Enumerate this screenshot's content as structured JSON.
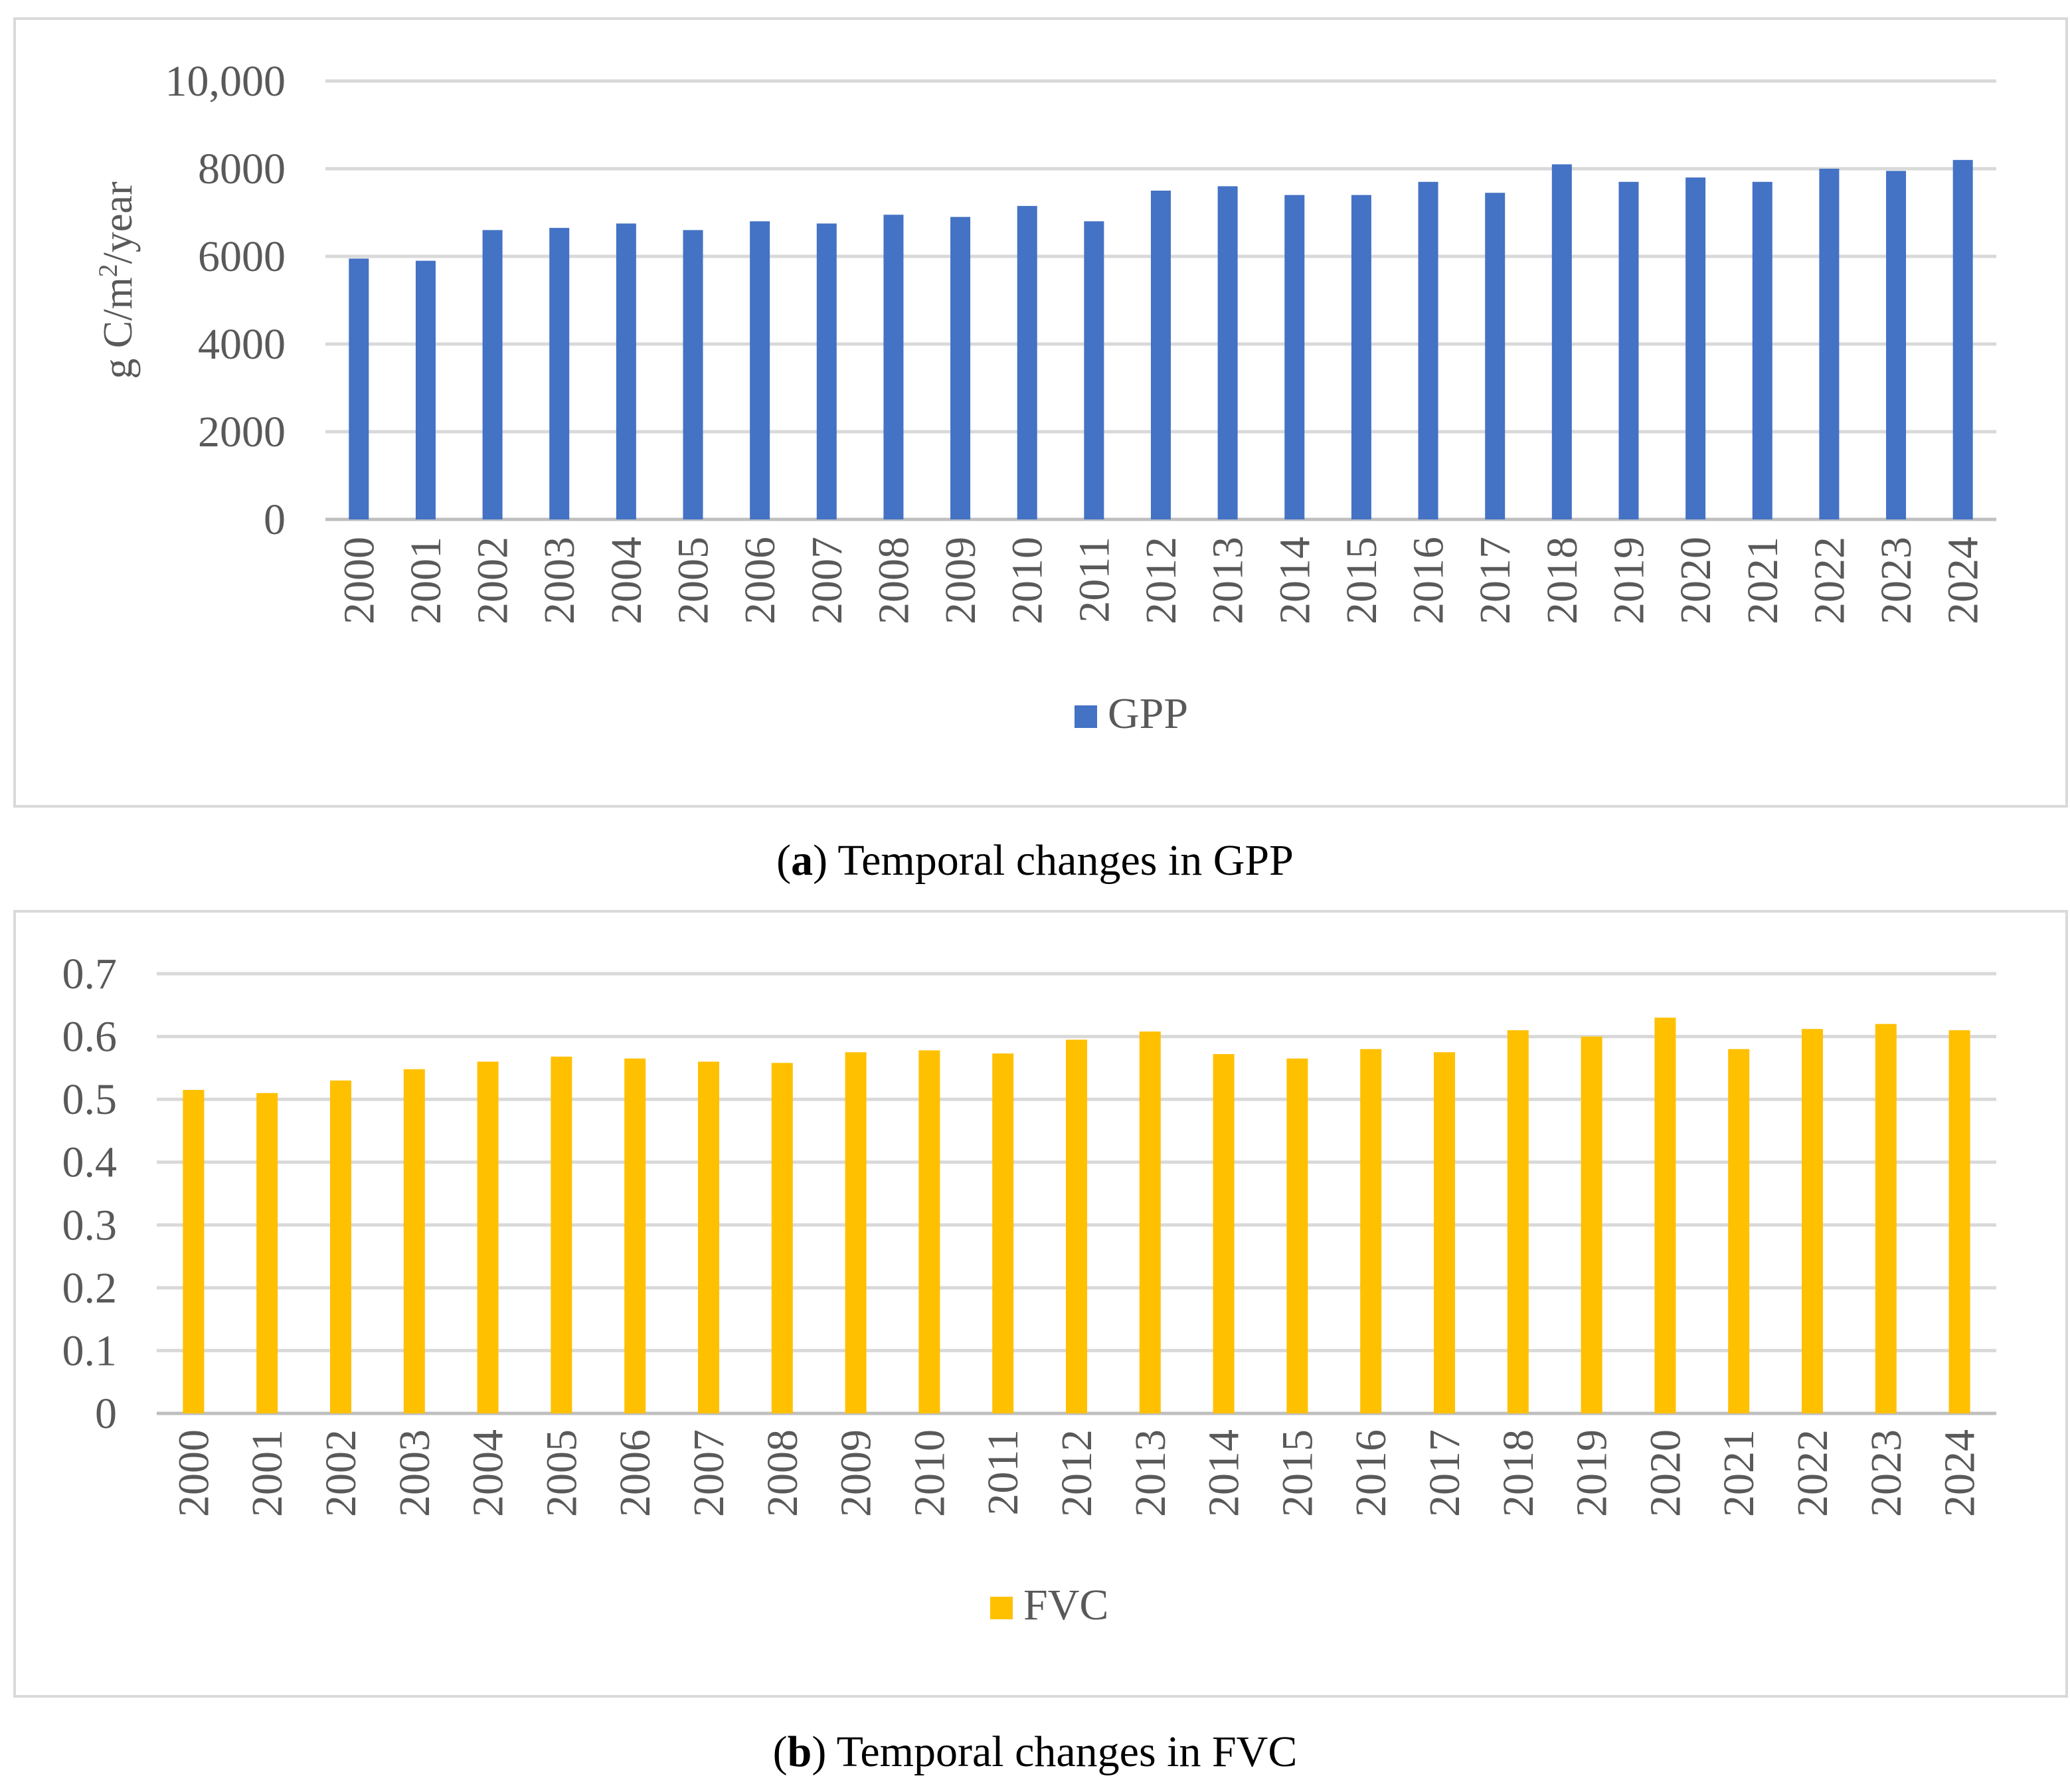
{
  "charts": [
    {
      "caption_label": "a",
      "caption_text": "Temporal changes in GPP",
      "legend": "GPP",
      "color": "#4472C4"
    },
    {
      "caption_label": "b",
      "caption_text": "Temporal changes in FVC",
      "legend": "FVC",
      "color": "#FFC000"
    }
  ],
  "chart_data": [
    {
      "type": "bar",
      "title": "Temporal changes in GPP",
      "ylabel_main": "g C/m",
      "ylabel_sup": "2",
      "ylabel_tail": "/year",
      "xlabel": "",
      "ylim": [
        0,
        10000
      ],
      "yticks": [
        0,
        2000,
        4000,
        6000,
        8000,
        10000
      ],
      "ytick_labels": [
        "0",
        "2000",
        "4000",
        "6000",
        "8000",
        "10,000"
      ],
      "categories": [
        "2000",
        "2001",
        "2002",
        "2003",
        "2004",
        "2005",
        "2006",
        "2007",
        "2008",
        "2009",
        "2010",
        "2011",
        "2012",
        "2013",
        "2014",
        "2015",
        "2016",
        "2017",
        "2018",
        "2019",
        "2020",
        "2021",
        "2022",
        "2023",
        "2024"
      ],
      "series": [
        {
          "name": "GPP",
          "color": "#4472C4",
          "values": [
            5950,
            5900,
            6600,
            6650,
            6750,
            6600,
            6800,
            6750,
            6950,
            6900,
            7150,
            6800,
            7500,
            7600,
            7400,
            7400,
            7700,
            7450,
            8100,
            7700,
            7800,
            7700,
            8000,
            7950,
            8200
          ]
        }
      ]
    },
    {
      "type": "bar",
      "title": "Temporal changes in FVC",
      "xlabel": "",
      "ylabel": "",
      "ylim": [
        0,
        0.7
      ],
      "yticks": [
        0,
        0.1,
        0.2,
        0.3,
        0.4,
        0.5,
        0.6,
        0.7
      ],
      "ytick_labels": [
        "0",
        "0.1",
        "0.2",
        "0.3",
        "0.4",
        "0.5",
        "0.6",
        "0.7"
      ],
      "categories": [
        "2000",
        "2001",
        "2002",
        "2003",
        "2004",
        "2005",
        "2006",
        "2007",
        "2008",
        "2009",
        "2010",
        "2011",
        "2012",
        "2013",
        "2014",
        "2015",
        "2016",
        "2017",
        "2018",
        "2019",
        "2020",
        "2021",
        "2022",
        "2023",
        "2024"
      ],
      "series": [
        {
          "name": "FVC",
          "color": "#FFC000",
          "values": [
            0.515,
            0.51,
            0.53,
            0.548,
            0.56,
            0.568,
            0.565,
            0.56,
            0.558,
            0.575,
            0.578,
            0.573,
            0.595,
            0.608,
            0.572,
            0.565,
            0.58,
            0.575,
            0.61,
            0.6,
            0.63,
            0.58,
            0.612,
            0.62,
            0.61
          ]
        }
      ]
    }
  ]
}
